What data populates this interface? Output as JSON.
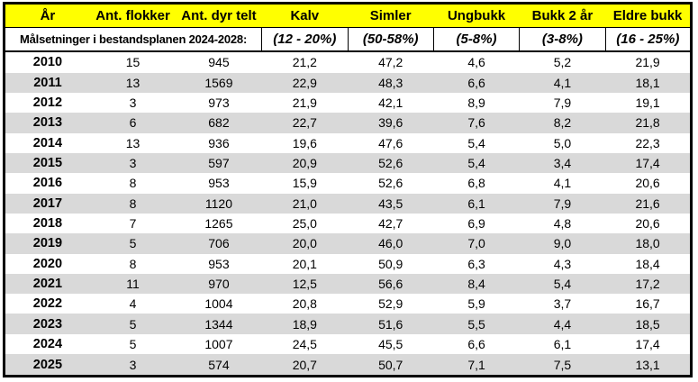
{
  "chart_data": {
    "type": "table",
    "title": "",
    "columns": [
      "År",
      "Ant. flokker",
      "Ant. dyr telt",
      "Kalv",
      "Simler",
      "Ungbukk",
      "Bukk 2 år",
      "Eldre bukk"
    ],
    "goals_row": {
      "label": "Målsetninger i bestandsplanen 2024-2028:",
      "label_colspan": 3,
      "values": [
        "(12 - 20%)",
        "(50-58%)",
        "(5-8%)",
        "(3-8%)",
        "(16 - 25%)"
      ]
    },
    "rows": [
      [
        "2010",
        "15",
        "945",
        "21,2",
        "47,2",
        "4,6",
        "5,2",
        "21,9"
      ],
      [
        "2011",
        "13",
        "1569",
        "22,9",
        "48,3",
        "6,6",
        "4,1",
        "18,1"
      ],
      [
        "2012",
        "3",
        "973",
        "21,9",
        "42,1",
        "8,9",
        "7,9",
        "19,1"
      ],
      [
        "2013",
        "6",
        "682",
        "22,7",
        "39,6",
        "7,6",
        "8,2",
        "21,8"
      ],
      [
        "2014",
        "13",
        "936",
        "19,6",
        "47,6",
        "5,4",
        "5,0",
        "22,3"
      ],
      [
        "2015",
        "3",
        "597",
        "20,9",
        "52,6",
        "5,4",
        "3,4",
        "17,4"
      ],
      [
        "2016",
        "8",
        "953",
        "15,9",
        "52,6",
        "6,8",
        "4,1",
        "20,6"
      ],
      [
        "2017",
        "8",
        "1120",
        "21,0",
        "43,5",
        "6,1",
        "7,9",
        "21,6"
      ],
      [
        "2018",
        "7",
        "1265",
        "25,0",
        "42,7",
        "6,9",
        "4,8",
        "20,6"
      ],
      [
        "2019",
        "5",
        "706",
        "20,0",
        "46,0",
        "7,0",
        "9,0",
        "18,0"
      ],
      [
        "2020",
        "8",
        "953",
        "20,1",
        "50,9",
        "6,3",
        "4,3",
        "18,4"
      ],
      [
        "2021",
        "11",
        "970",
        "12,5",
        "56,6",
        "8,4",
        "5,4",
        "17,2"
      ],
      [
        "2022",
        "4",
        "1004",
        "20,8",
        "52,9",
        "5,9",
        "3,7",
        "16,7"
      ],
      [
        "2023",
        "5",
        "1344",
        "18,9",
        "51,6",
        "5,5",
        "4,4",
        "18,5"
      ],
      [
        "2024",
        "5",
        "1007",
        "24,5",
        "45,5",
        "6,6",
        "6,1",
        "17,4"
      ],
      [
        "2025",
        "3",
        "574",
        "20,7",
        "50,7",
        "7,1",
        "7,5",
        "13,1"
      ]
    ],
    "layout": {
      "striped_rows": true,
      "stripe_start_index": 1,
      "header_background": "#FFFF00"
    }
  },
  "colors": {
    "header_bg": "#FFFF00",
    "stripe": "#D9D9D9",
    "border": "#000000",
    "text": "#000000"
  }
}
